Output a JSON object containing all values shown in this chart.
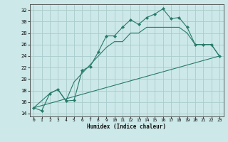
{
  "title": "",
  "xlabel": "Humidex (Indice chaleur)",
  "xlim": [
    -0.5,
    23.5
  ],
  "ylim": [
    13.5,
    33
  ],
  "yticks": [
    14,
    16,
    18,
    20,
    22,
    24,
    26,
    28,
    30,
    32
  ],
  "xticks": [
    0,
    1,
    2,
    3,
    4,
    5,
    6,
    7,
    8,
    9,
    10,
    11,
    12,
    13,
    14,
    15,
    16,
    17,
    18,
    19,
    20,
    21,
    22,
    23
  ],
  "background_color": "#cce8e8",
  "grid_color": "#aacccc",
  "line_color": "#267a6a",
  "line1_x": [
    0,
    1,
    2,
    3,
    4,
    5,
    6,
    7,
    8,
    9,
    10,
    11,
    12,
    13,
    14,
    15,
    16,
    17,
    18,
    19,
    20,
    21,
    22,
    23
  ],
  "line1_y": [
    15,
    14.5,
    17.5,
    18.2,
    16.2,
    16.3,
    21.5,
    22.2,
    24.7,
    27.5,
    27.5,
    29.0,
    30.3,
    29.5,
    30.7,
    31.3,
    32.2,
    30.5,
    30.7,
    29.0,
    26.0,
    26.0,
    26.0,
    24.0
  ],
  "line2_x": [
    0,
    2,
    3,
    4,
    5,
    6,
    7,
    8,
    9,
    10,
    11,
    12,
    13,
    14,
    15,
    16,
    17,
    18,
    19,
    20,
    21,
    22,
    23
  ],
  "line2_y": [
    15.0,
    17.5,
    18.2,
    16.2,
    19.5,
    21.0,
    22.5,
    24.0,
    25.5,
    26.5,
    26.5,
    28.0,
    28.0,
    29.0,
    29.0,
    29.0,
    29.0,
    29.0,
    28.0,
    26.0,
    26.0,
    26.0,
    24.0
  ],
  "line3_x": [
    0,
    23
  ],
  "line3_y": [
    15.0,
    24.0
  ]
}
